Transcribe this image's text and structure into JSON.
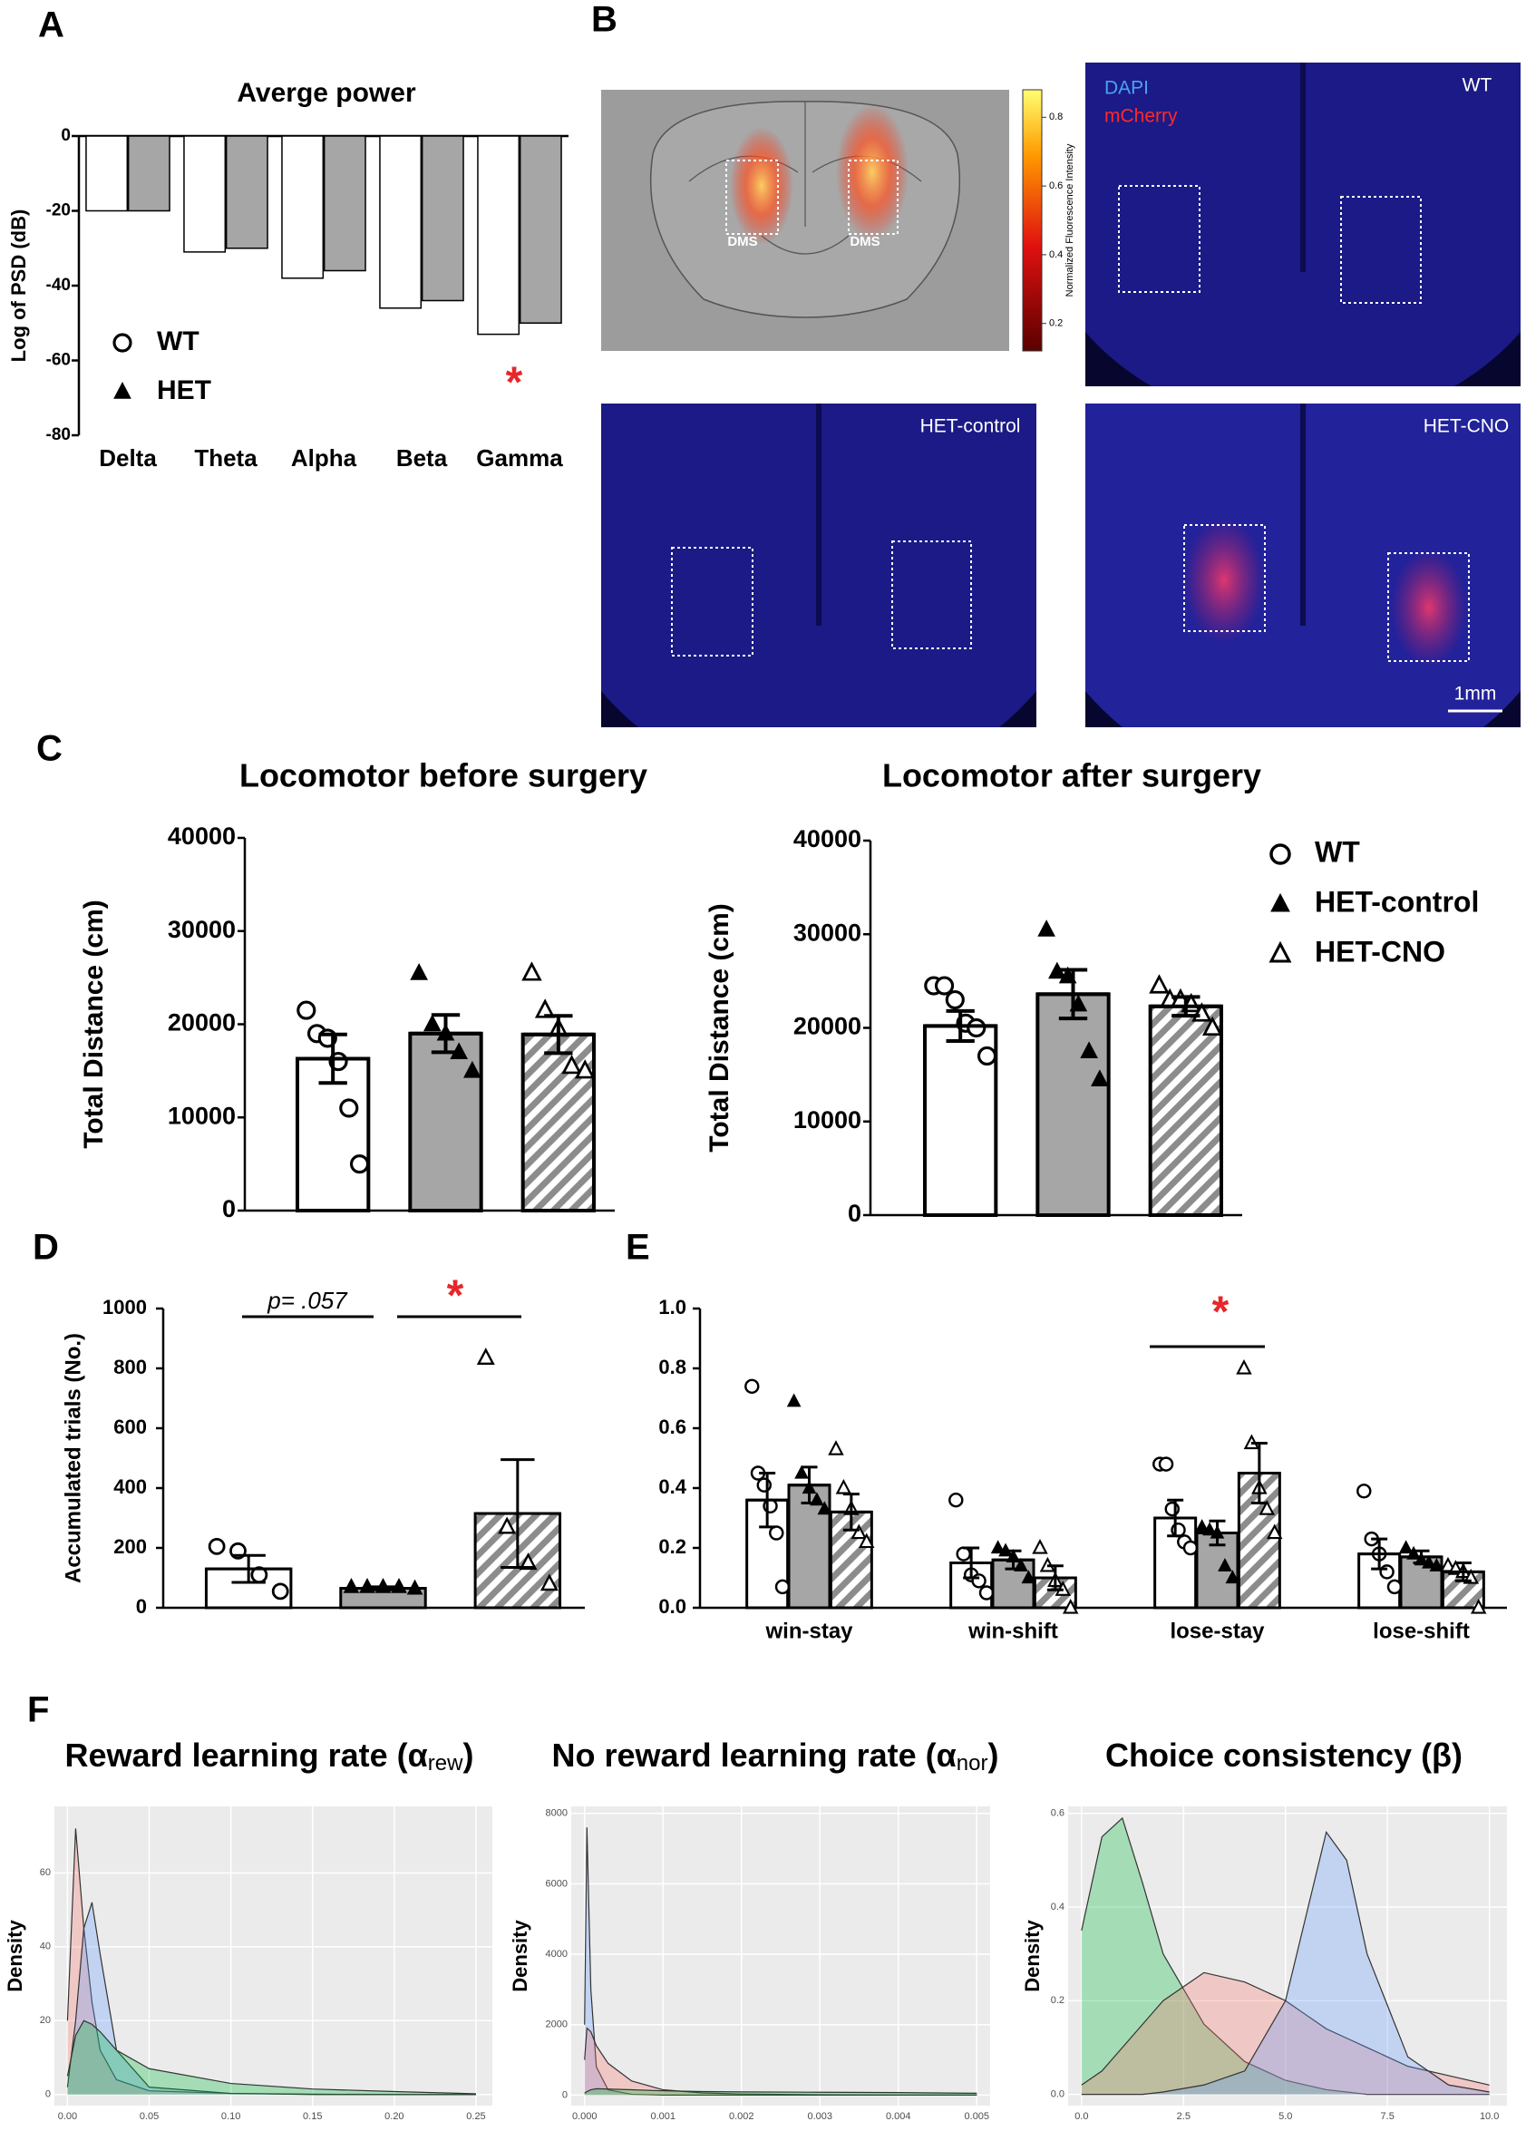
{
  "panel_labels": [
    "A",
    "B",
    "C",
    "D",
    "E",
    "F"
  ],
  "panel_b": {
    "atlas_labels": [
      "DMS",
      "DMS"
    ],
    "colorbar": {
      "label": "Normalized Fluorescence Intensity",
      "lim": [
        0.12,
        0.88
      ],
      "ticks": [
        0.2,
        0.4,
        0.6,
        0.8
      ]
    },
    "images": [
      {
        "label": "WT",
        "stains": [
          {
            "name": "DAPI",
            "color": "#4aa3f0"
          },
          {
            "name": "mCherry",
            "color": "#ff2a2a"
          }
        ]
      },
      {
        "label": "HET-control"
      },
      {
        "label": "HET-CNO",
        "scale_bar": "1mm"
      }
    ]
  },
  "chart_data": [
    {
      "type": "bar",
      "title": "Averge power",
      "y_label": "Log of PSD (dB)",
      "categories": [
        "Delta",
        "Theta",
        "Alpha",
        "Beta",
        "Gamma"
      ],
      "series": [
        {
          "name": "WT",
          "color": "#ffffff",
          "marker": "circle-open",
          "values": [
            -20,
            -31,
            -38,
            -46,
            -53
          ]
        },
        {
          "name": "HET",
          "color": "#a6a6a6",
          "marker": "triangle",
          "values": [
            -20,
            -30,
            -36,
            -44,
            -50
          ]
        }
      ],
      "ylim": [
        -80,
        0
      ],
      "yticks": [
        -80,
        -60,
        -40,
        -20,
        0
      ],
      "legend": "lower-left",
      "annotations": [
        {
          "text": "*",
          "color": "#e8262a"
        }
      ]
    },
    {
      "type": "bar",
      "title": "Locomotor before surgery",
      "y_label": "Total Distance (cm)",
      "series": [
        {
          "color": "#ffffff",
          "marker": "circle-open",
          "values": [
            16300
          ],
          "errors": [
            2600
          ],
          "points": [
            [
              21500,
              19000,
              18500,
              16000,
              11000,
              5000
            ]
          ]
        },
        {
          "color": "#a6a6a6",
          "marker": "triangle",
          "values": [
            19000
          ],
          "errors": [
            2000
          ],
          "points": [
            [
              25500,
              20000,
              19000,
              17000,
              15000
            ]
          ]
        },
        {
          "color": "#ffffff",
          "hatch": "#8c8c8c",
          "marker": "triangle-open",
          "values": [
            18900
          ],
          "errors": [
            2000
          ],
          "points": [
            [
              25500,
              21500,
              19500,
              15500,
              15000
            ]
          ]
        }
      ],
      "ylim": [
        0,
        40000
      ],
      "yticks": [
        0,
        10000,
        20000,
        30000,
        40000
      ]
    },
    {
      "type": "bar",
      "title": "Locomotor after surgery",
      "y_label": "Total Distance (cm)",
      "series": [
        {
          "name": "WT",
          "color": "#ffffff",
          "marker": "circle-open",
          "values": [
            20200
          ],
          "errors": [
            1600
          ],
          "points": [
            [
              24500,
              24500,
              23000,
              20500,
              20000,
              17000
            ]
          ]
        },
        {
          "name": "HET-control",
          "color": "#a6a6a6",
          "marker": "triangle",
          "values": [
            23600
          ],
          "errors": [
            2600
          ],
          "points": [
            [
              30500,
              26000,
              25500,
              22500,
              17500,
              14500
            ]
          ]
        },
        {
          "name": "HET-CNO",
          "color": "#ffffff",
          "hatch": "#8c8c8c",
          "marker": "triangle-open",
          "values": [
            22300
          ],
          "errors": [
            1000
          ],
          "points": [
            [
              24500,
              23000,
              23000,
              22500,
              21500,
              20000
            ]
          ]
        }
      ],
      "ylim": [
        0,
        40000
      ],
      "yticks": [
        0,
        10000,
        20000,
        30000,
        40000
      ],
      "legend": "right"
    },
    {
      "type": "bar",
      "y_label": "Accumulated trials (No.)",
      "series": [
        {
          "color": "#ffffff",
          "marker": "circle-open",
          "values": [
            130
          ],
          "errors": [
            45
          ],
          "points": [
            [
              205,
              190,
              110,
              55
            ]
          ]
        },
        {
          "color": "#a6a6a6",
          "marker": "triangle",
          "values": [
            65
          ],
          "errors": [
            5
          ],
          "points": [
            [
              70,
              70,
              70,
              70,
              65
            ]
          ]
        },
        {
          "color": "#ffffff",
          "hatch": "#8c8c8c",
          "marker": "triangle-open",
          "values": [
            315
          ],
          "errors": [
            180
          ],
          "points": [
            [
              835,
              270,
              150,
              80
            ]
          ]
        }
      ],
      "ylim": [
        0,
        1000
      ],
      "yticks": [
        0,
        200,
        400,
        600,
        800,
        1000
      ],
      "annotations": [
        {
          "text": "p= .057"
        },
        {
          "text": "*",
          "color": "#e8262a"
        }
      ]
    },
    {
      "type": "bar",
      "categories": [
        "win-stay",
        "win-shift",
        "lose-stay",
        "lose-shift"
      ],
      "series": [
        {
          "color": "#ffffff",
          "marker": "circle-open",
          "values": [
            0.36,
            0.15,
            0.3,
            0.18
          ],
          "errors": [
            0.09,
            0.05,
            0.06,
            0.05
          ],
          "points": [
            [
              0.74,
              0.45,
              0.41,
              0.34,
              0.25,
              0.07
            ],
            [
              0.36,
              0.18,
              0.11,
              0.09,
              0.05
            ],
            [
              0.48,
              0.48,
              0.33,
              0.26,
              0.22,
              0.2
            ],
            [
              0.39,
              0.23,
              0.18,
              0.12,
              0.07
            ]
          ]
        },
        {
          "color": "#a6a6a6",
          "marker": "triangle",
          "values": [
            0.41,
            0.16,
            0.25,
            0.17
          ],
          "errors": [
            0.06,
            0.03,
            0.04,
            0.02
          ],
          "points": [
            [
              0.69,
              0.45,
              0.4,
              0.36,
              0.33
            ],
            [
              0.2,
              0.19,
              0.17,
              0.14,
              0.1
            ],
            [
              0.27,
              0.26,
              0.25,
              0.14,
              0.1
            ],
            [
              0.2,
              0.18,
              0.16,
              0.15,
              0.14
            ]
          ]
        },
        {
          "color": "#ffffff",
          "hatch": "#8c8c8c",
          "marker": "triangle-open",
          "values": [
            0.32,
            0.1,
            0.45,
            0.12
          ],
          "errors": [
            0.06,
            0.04,
            0.1,
            0.03
          ],
          "points": [
            [
              0.53,
              0.4,
              0.33,
              0.25,
              0.22
            ],
            [
              0.2,
              0.14,
              0.09,
              0.06,
              0.0
            ],
            [
              0.8,
              0.55,
              0.4,
              0.33,
              0.25
            ],
            [
              0.14,
              0.13,
              0.12,
              0.1,
              0.0
            ]
          ]
        }
      ],
      "ylim": [
        0,
        1
      ],
      "yticks": [
        {
          "value": 0,
          "label": "0.0"
        },
        0.2,
        0.4,
        0.6,
        0.8,
        {
          "value": 1,
          "label": "1.0"
        }
      ],
      "annotations": [
        {
          "text": "*",
          "color": "#e8262a"
        }
      ]
    },
    {
      "type": "density",
      "title": "Reward learning rate (α",
      "title_subscript": "rew",
      "title_suffix": ")",
      "y_label": "Density",
      "x": [
        0,
        0.005,
        0.01,
        0.015,
        0.02,
        0.03,
        0.05,
        0.1,
        0.15,
        0.2,
        0.25
      ],
      "series": [
        {
          "color": "#F8766D",
          "values": [
            20,
            72,
            45,
            25,
            12,
            4,
            1,
            0.3,
            0.1,
            0,
            0
          ]
        },
        {
          "color": "#619CFF",
          "values": [
            2,
            20,
            45,
            52,
            38,
            12,
            2,
            0.3,
            0,
            0,
            0
          ]
        },
        {
          "color": "#00BA38",
          "values": [
            5,
            16,
            20,
            19,
            17,
            12,
            7,
            3,
            1.5,
            0.8,
            0.2
          ]
        }
      ],
      "xlim": [
        -0.008,
        0.26
      ],
      "ylim": [
        -3,
        78
      ],
      "xticks": [
        {
          "value": 0,
          "label": "0.00"
        },
        0.05,
        {
          "value": 0.1,
          "label": "0.10"
        },
        0.15,
        {
          "value": 0.2,
          "label": "0.20"
        },
        0.25
      ],
      "yticks": [
        0,
        20,
        40,
        60
      ],
      "grid": true,
      "background": "#ebebeb"
    },
    {
      "type": "density",
      "title": "No reward learning rate (α",
      "title_subscript": "nor",
      "title_suffix": ")",
      "y_label": "Density",
      "x": [
        0,
        3e-05,
        8e-05,
        0.00015,
        0.0003,
        0.0006,
        0.001,
        0.0015,
        0.002,
        0.003,
        0.004,
        0.005
      ],
      "series": [
        {
          "color": "#619CFF",
          "values": [
            2000,
            7600,
            3000,
            800,
            150,
            20,
            0,
            0,
            0,
            0,
            0,
            0
          ]
        },
        {
          "color": "#F8766D",
          "values": [
            1000,
            1900,
            1800,
            1400,
            900,
            400,
            150,
            60,
            30,
            10,
            0,
            0
          ]
        },
        {
          "color": "#00BA38",
          "values": [
            50,
            100,
            150,
            180,
            170,
            150,
            120,
            100,
            90,
            80,
            70,
            50
          ]
        }
      ],
      "xlim": [
        -0.00017,
        0.00517
      ],
      "ylim": [
        -300,
        8200
      ],
      "xticks": [
        {
          "value": 0,
          "label": "0.000"
        },
        0.001,
        0.002,
        0.003,
        0.004,
        0.005
      ],
      "yticks": [
        0,
        2000,
        4000,
        6000,
        8000
      ],
      "grid": true,
      "background": "#ebebeb"
    },
    {
      "type": "density",
      "title": "Choice consistency (β)",
      "y_label": "Density",
      "x": [
        0,
        0.5,
        1,
        1.5,
        2,
        3,
        4,
        5,
        5.5,
        6,
        6.5,
        7,
        8,
        9,
        10
      ],
      "series": [
        {
          "color": "#00BA38",
          "values": [
            0.35,
            0.55,
            0.59,
            0.45,
            0.3,
            0.15,
            0.07,
            0.03,
            0.02,
            0.01,
            0.005,
            0,
            0,
            0,
            0
          ]
        },
        {
          "color": "#F8766D",
          "values": [
            0.02,
            0.05,
            0.1,
            0.15,
            0.2,
            0.26,
            0.24,
            0.2,
            0.17,
            0.14,
            0.12,
            0.1,
            0.06,
            0.04,
            0.02
          ]
        },
        {
          "color": "#619CFF",
          "values": [
            0,
            0,
            0,
            0,
            0.005,
            0.02,
            0.05,
            0.2,
            0.38,
            0.56,
            0.5,
            0.3,
            0.08,
            0.02,
            0.005
          ]
        }
      ],
      "xlim": [
        -0.33,
        10.43
      ],
      "ylim": [
        -0.024,
        0.615
      ],
      "xticks": [
        {
          "value": 0,
          "label": "0.0"
        },
        2.5,
        {
          "value": 5,
          "label": "5.0"
        },
        7.5,
        {
          "value": 10,
          "label": "10.0"
        }
      ],
      "yticks": [
        {
          "value": 0,
          "label": "0.0"
        },
        0.2,
        0.4,
        0.6
      ],
      "grid": true,
      "background": "#ebebeb"
    }
  ]
}
